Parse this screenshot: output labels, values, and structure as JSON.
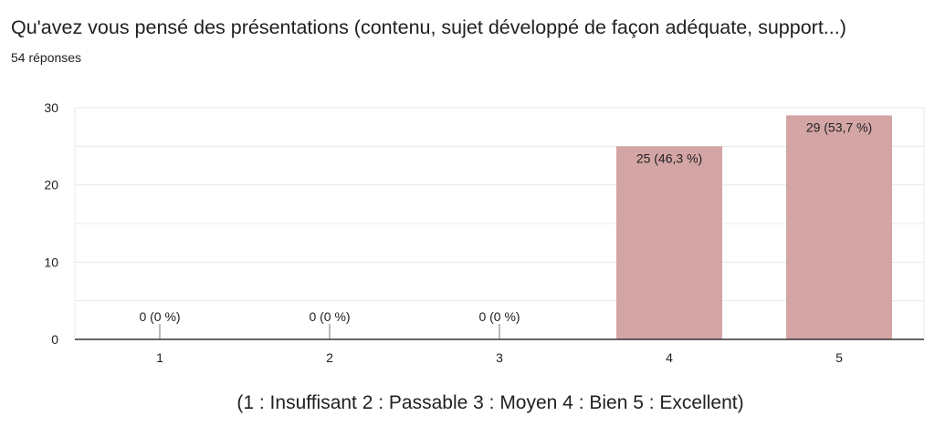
{
  "header": {
    "title": "Qu'avez vous pensé des présentations (contenu, sujet développé de façon adéquate, support...)",
    "responses": "54 réponses"
  },
  "colors": {
    "bar": "#d3a5a4",
    "grid": "#e8e8e8",
    "axis": "#333333",
    "text": "#202124"
  },
  "chart_data": {
    "type": "bar",
    "categories": [
      "1",
      "2",
      "3",
      "4",
      "5"
    ],
    "values": [
      0,
      0,
      0,
      25,
      29
    ],
    "data_labels": [
      "0 (0 %)",
      "0 (0 %)",
      "0 (0 %)",
      "25 (46,3 %)",
      "29 (53,7 %)"
    ],
    "ylim": [
      0,
      30
    ],
    "y_ticks": [
      0,
      10,
      20,
      30
    ],
    "xlabel": "(1 : Insuffisant 2 : Passable 3 : Moyen 4 : Bien 5 : Excellent)",
    "ylabel": "",
    "grid": true,
    "legend": "none"
  }
}
